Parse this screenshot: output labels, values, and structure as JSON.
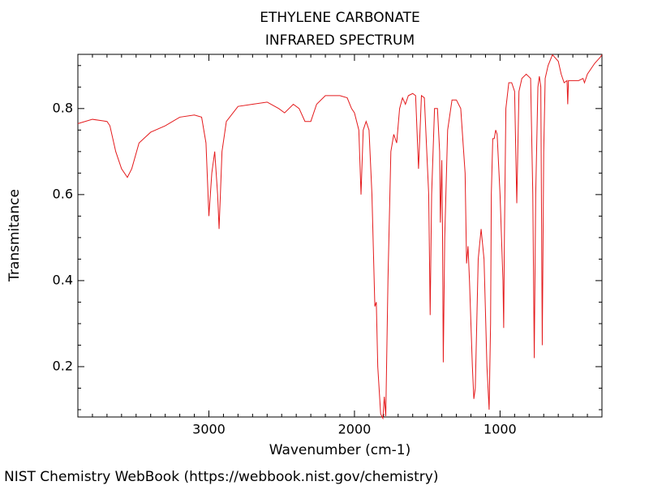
{
  "chart_data": {
    "type": "line",
    "title": "ETHYLENE CARBONATE",
    "subtitle": "INFRARED SPECTRUM",
    "x_label": "Wavenumber (cm-1)",
    "y_label": "Transmitance",
    "source": "NIST Chemistry WebBook (https://webbook.nist.gov/chemistry)",
    "color": "#e41a1c",
    "xlim": [
      3900,
      300
    ],
    "ylim": [
      0.083,
      0.926
    ],
    "xticks": [
      3000,
      2000,
      1000
    ],
    "yticks": [
      0.2,
      0.4,
      0.6,
      0.8
    ],
    "xminorticks": [
      3800,
      3700,
      3600,
      3500,
      3400,
      3300,
      3200,
      3100,
      2900,
      2800,
      2700,
      2600,
      2500,
      2400,
      2300,
      2200,
      2100,
      1900,
      1800,
      1700,
      1600,
      1500,
      1400,
      1300,
      1200,
      1100,
      900,
      800,
      700,
      600,
      500,
      400
    ],
    "yminorticks": [
      0.1,
      0.15,
      0.25,
      0.3,
      0.35,
      0.45,
      0.5,
      0.55,
      0.65,
      0.7,
      0.75,
      0.85,
      0.9
    ],
    "x": [
      3900,
      3800,
      3700,
      3680,
      3640,
      3600,
      3560,
      3530,
      3480,
      3400,
      3300,
      3200,
      3100,
      3050,
      3020,
      3000,
      2980,
      2960,
      2940,
      2930,
      2910,
      2880,
      2800,
      2700,
      2600,
      2520,
      2480,
      2420,
      2380,
      2340,
      2300,
      2260,
      2200,
      2100,
      2050,
      2020,
      2000,
      1970,
      1955,
      1940,
      1920,
      1900,
      1880,
      1860,
      1850,
      1840,
      1820,
      1805,
      1795,
      1785,
      1770,
      1750,
      1730,
      1710,
      1690,
      1670,
      1650,
      1630,
      1600,
      1580,
      1560,
      1540,
      1520,
      1490,
      1480,
      1470,
      1450,
      1430,
      1415,
      1410,
      1400,
      1395,
      1390,
      1380,
      1360,
      1330,
      1300,
      1270,
      1240,
      1230,
      1220,
      1210,
      1190,
      1180,
      1170,
      1150,
      1130,
      1110,
      1090,
      1075,
      1065,
      1060,
      1050,
      1040,
      1030,
      1020,
      1000,
      980,
      975,
      970,
      960,
      940,
      920,
      900,
      885,
      870,
      850,
      820,
      790,
      775,
      765,
      755,
      740,
      730,
      720,
      710,
      700,
      690,
      670,
      640,
      600,
      580,
      560,
      540,
      535,
      530,
      500,
      460,
      430,
      420,
      400,
      350,
      310,
      300
    ],
    "values": [
      0.765,
      0.775,
      0.77,
      0.76,
      0.7,
      0.66,
      0.64,
      0.66,
      0.72,
      0.745,
      0.76,
      0.78,
      0.785,
      0.78,
      0.72,
      0.55,
      0.65,
      0.7,
      0.6,
      0.52,
      0.7,
      0.77,
      0.805,
      0.81,
      0.815,
      0.8,
      0.79,
      0.81,
      0.8,
      0.77,
      0.77,
      0.81,
      0.83,
      0.83,
      0.825,
      0.8,
      0.79,
      0.75,
      0.6,
      0.75,
      0.77,
      0.75,
      0.6,
      0.34,
      0.35,
      0.2,
      0.09,
      0.08,
      0.13,
      0.085,
      0.4,
      0.7,
      0.74,
      0.72,
      0.8,
      0.825,
      0.81,
      0.83,
      0.835,
      0.83,
      0.66,
      0.83,
      0.825,
      0.6,
      0.32,
      0.6,
      0.8,
      0.8,
      0.7,
      0.535,
      0.68,
      0.5,
      0.21,
      0.5,
      0.75,
      0.82,
      0.82,
      0.8,
      0.65,
      0.44,
      0.48,
      0.4,
      0.2,
      0.125,
      0.15,
      0.45,
      0.52,
      0.45,
      0.2,
      0.1,
      0.3,
      0.6,
      0.73,
      0.73,
      0.75,
      0.74,
      0.6,
      0.4,
      0.29,
      0.5,
      0.8,
      0.86,
      0.86,
      0.84,
      0.58,
      0.84,
      0.87,
      0.88,
      0.87,
      0.6,
      0.22,
      0.6,
      0.85,
      0.875,
      0.85,
      0.25,
      0.7,
      0.87,
      0.9,
      0.925,
      0.91,
      0.88,
      0.86,
      0.865,
      0.81,
      0.865,
      0.865,
      0.865,
      0.87,
      0.86,
      0.88,
      0.905,
      0.92,
      0.925
    ]
  }
}
